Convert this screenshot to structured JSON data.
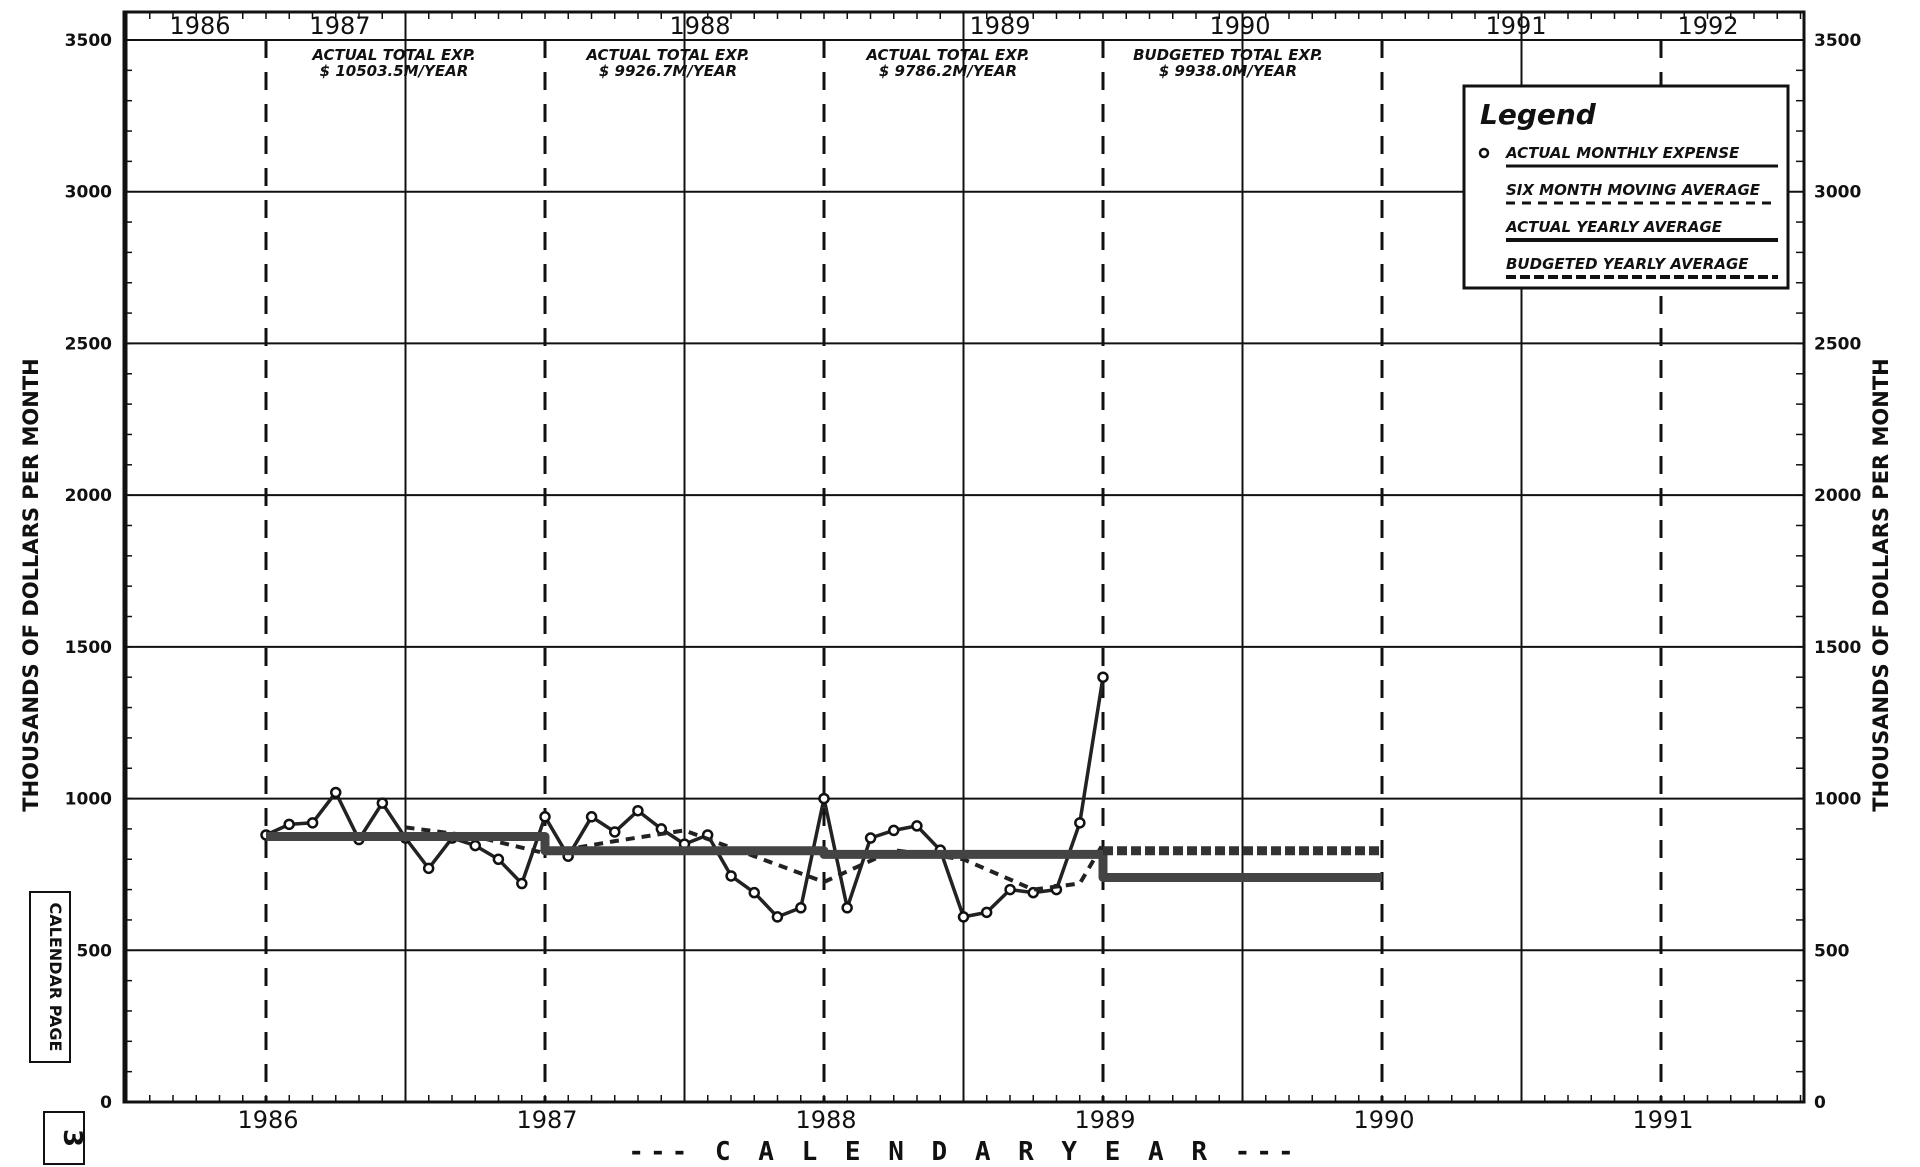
{
  "chart_data": {
    "type": "line",
    "ylabel": "THOUSANDS OF DOLLARS PER MONTH",
    "ylabel_right": "THOUSANDS OF DOLLARS PER MONTH",
    "xlabel": "--- C A L E N D A R   Y E A R ---",
    "ylim": [
      0,
      3500
    ],
    "xlim": [
      1986,
      1991.5
    ],
    "y_ticks": [
      "0",
      "500",
      "1000",
      "1500",
      "2000",
      "2500",
      "3000",
      "3500"
    ],
    "y_ticks_right": [
      "0",
      "500",
      "1000",
      "1500",
      "2000",
      "2500",
      "3000",
      "3500"
    ],
    "calendar_years": [
      "1986",
      "1987",
      "1988",
      "1989",
      "1990",
      "1991"
    ],
    "fiscal_years": [
      "1986",
      "1987",
      "1988",
      "1989",
      "1990",
      "1991",
      "1992"
    ],
    "annotations": [
      {
        "line1": "ACTUAL TOTAL EXP.",
        "line2": "$ 10503.5M/YEAR"
      },
      {
        "line1": "ACTUAL TOTAL EXP.",
        "line2": "$ 9926.7M/YEAR"
      },
      {
        "line1": "ACTUAL TOTAL EXP.",
        "line2": "$ 9786.2M/YEAR"
      },
      {
        "line1": "BUDGETED TOTAL EXP.",
        "line2": "$ 9938.0M/YEAR"
      }
    ],
    "legend_position": "top-right",
    "grid": true,
    "series": [
      {
        "name": "ACTUAL MONTHLY EXPENSE",
        "x": [
          1986.0,
          1986.083,
          1986.167,
          1986.25,
          1986.333,
          1986.417,
          1986.5,
          1986.583,
          1986.667,
          1986.75,
          1986.833,
          1986.917,
          1987.0,
          1987.083,
          1987.167,
          1987.25,
          1987.333,
          1987.417,
          1987.5,
          1987.583,
          1987.667,
          1987.75,
          1987.833,
          1987.917,
          1988.0,
          1988.083,
          1988.167,
          1988.25,
          1988.333,
          1988.417,
          1988.5,
          1988.583,
          1988.667,
          1988.75,
          1988.833,
          1988.917,
          1989.0
        ],
        "values": [
          880,
          915,
          920,
          1020,
          865,
          985,
          870,
          770,
          870,
          845,
          800,
          720,
          940,
          810,
          940,
          890,
          960,
          900,
          850,
          880,
          745,
          690,
          610,
          640,
          1000,
          640,
          870,
          895,
          910,
          830,
          610,
          625,
          700,
          690,
          700,
          920,
          1400
        ]
      },
      {
        "name": "SIX MONTH MOVING AVERAGE",
        "x": [
          1986.5,
          1986.75,
          1987.0,
          1987.25,
          1987.5,
          1987.75,
          1988.0,
          1988.25,
          1988.5,
          1988.75,
          1988.917,
          1989.0
        ],
        "values": [
          905,
          875,
          820,
          860,
          895,
          810,
          725,
          830,
          800,
          700,
          720,
          850
        ]
      },
      {
        "name": "ACTUAL YEARLY AVERAGE",
        "x": [
          1986.0,
          1987.0,
          1987.0,
          1988.0,
          1988.0,
          1989.0,
          1989.0,
          1990.0
        ],
        "values": [
          875,
          875,
          828,
          828,
          816,
          816,
          740,
          740
        ]
      },
      {
        "name": "BUDGETED YEARLY AVERAGE",
        "x": [
          1989.0,
          1990.0
        ],
        "values": [
          828,
          828
        ]
      }
    ]
  },
  "side_label": "CALENDAR PAGE",
  "page_number": "3"
}
